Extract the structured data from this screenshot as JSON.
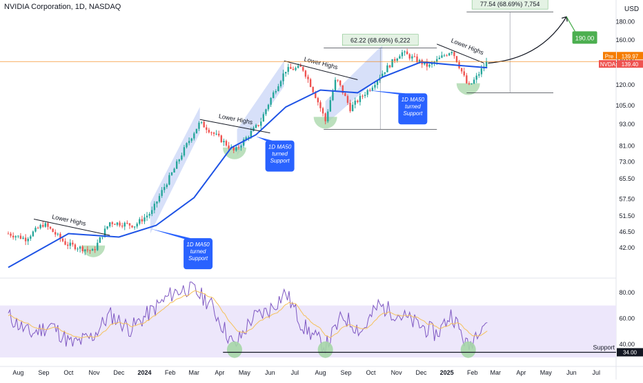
{
  "header": {
    "title": "NVIDIA Corporation, 1D, NASDAQ",
    "currency": "USD"
  },
  "colors": {
    "up": "#26a69a",
    "down": "#ef5350",
    "ma50": "#1e53e5",
    "rsi": "#7e57c2",
    "rsi_ma": "#f5c15a",
    "channel": "#c9d6f7",
    "rsi_band": "#ede7fb",
    "green_zone": "#a5d6a7",
    "callout": "#2962ff",
    "target": "#4caf50",
    "price_line": "#f57c00"
  },
  "chart_data": [
    {
      "type": "candlestick",
      "title": "NVIDIA Corporation, 1D, NASDAQ",
      "x_tick_labels": [
        "Aug",
        "Sep",
        "Oct",
        "Nov",
        "Dec",
        "2024",
        "Feb",
        "Mar",
        "Apr",
        "May",
        "Jun",
        "Jul",
        "Aug",
        "Sep",
        "Oct",
        "Nov",
        "Dec",
        "2025",
        "Feb",
        "Mar",
        "Apr",
        "May",
        "Jun",
        "Jul"
      ],
      "y_scale": "log",
      "y_tick_labels": [
        "180.00",
        "160.00",
        "140.00",
        "120.00",
        "105.00",
        "93.00",
        "81.00",
        "73.00",
        "65.50",
        "57.50",
        "51.50",
        "46.50",
        "42.00"
      ],
      "ylim": [
        35,
        200
      ],
      "series": [
        {
          "name": "NVDA",
          "kind": "price",
          "x": [
            "2023-07-20",
            "2023-08-10",
            "2023-09-01",
            "2023-09-28",
            "2023-10-31",
            "2023-11-20",
            "2023-12-20",
            "2024-01-10",
            "2024-02-05",
            "2024-03-08",
            "2024-04-19",
            "2024-05-20",
            "2024-06-20",
            "2024-07-10",
            "2024-08-07",
            "2024-08-20",
            "2024-09-06",
            "2024-10-01",
            "2024-11-07",
            "2024-12-10",
            "2025-01-07",
            "2025-01-27",
            "2025-02-05",
            "2025-02-19"
          ],
          "values": [
            46.0,
            44.5,
            49.0,
            43.0,
            41.0,
            49.5,
            48.5,
            53.0,
            69.0,
            94.0,
            78.0,
            94.0,
            132.0,
            134.0,
            95.0,
            125.0,
            103.0,
            118.0,
            148.0,
            135.0,
            150.0,
            118.0,
            125.0,
            139.4
          ]
        },
        {
          "name": "1D MA50",
          "kind": "ma",
          "x": [
            "2023-07-20",
            "2023-10-01",
            "2023-12-01",
            "2024-01-15",
            "2024-03-01",
            "2024-04-15",
            "2024-05-15",
            "2024-06-20",
            "2024-08-01",
            "2024-09-15",
            "2024-10-15",
            "2024-12-01",
            "2025-01-15",
            "2025-02-19"
          ],
          "values": [
            37.0,
            46.0,
            45.0,
            48.5,
            58.0,
            80.0,
            87.0,
            104.0,
            116.0,
            114.0,
            126.0,
            139.0,
            136.0,
            134.0
          ]
        }
      ],
      "last_price": {
        "symbol": "NVDA",
        "value": "139.40"
      },
      "pre_market": {
        "label": "Pre",
        "value": "139.97"
      },
      "annotations": {
        "lower_highs": [
          "Lower Highs",
          "Lower Highs",
          "Lower Highs",
          "Lower Highs"
        ],
        "ma_support_line1": "1D MA50",
        "ma_support_line2": "turned",
        "ma_support_line3": "Support",
        "measure_1": "62.22 (68.69%) 6,222",
        "measure_2": "77.54 (68.69%) 7,754",
        "target": "190.00"
      }
    },
    {
      "type": "line",
      "title": "",
      "y_tick_labels": [
        "80.00",
        "60.00",
        "40.00"
      ],
      "ylim": [
        30,
        90
      ],
      "series": [
        {
          "name": "",
          "kind": "rsi",
          "x": [
            "2023-07-20",
            "2023-08-15",
            "2023-09-10",
            "2023-10-05",
            "2023-10-30",
            "2023-11-20",
            "2023-12-15",
            "2024-01-10",
            "2024-02-05",
            "2024-02-25",
            "2024-03-20",
            "2024-04-19",
            "2024-05-10",
            "2024-05-30",
            "2024-06-20",
            "2024-07-10",
            "2024-08-07",
            "2024-08-28",
            "2024-09-20",
            "2024-10-10",
            "2024-11-01",
            "2024-11-25",
            "2024-12-20",
            "2025-01-07",
            "2025-01-27",
            "2025-02-10",
            "2025-02-19"
          ],
          "values": [
            62,
            48,
            55,
            40,
            46,
            63,
            52,
            66,
            80,
            84,
            72,
            38,
            60,
            66,
            80,
            55,
            38,
            62,
            50,
            70,
            64,
            56,
            48,
            64,
            37,
            55,
            58
          ]
        }
      ],
      "band": [
        30,
        70
      ],
      "support": {
        "label": "Support",
        "value": "34.00"
      }
    }
  ]
}
